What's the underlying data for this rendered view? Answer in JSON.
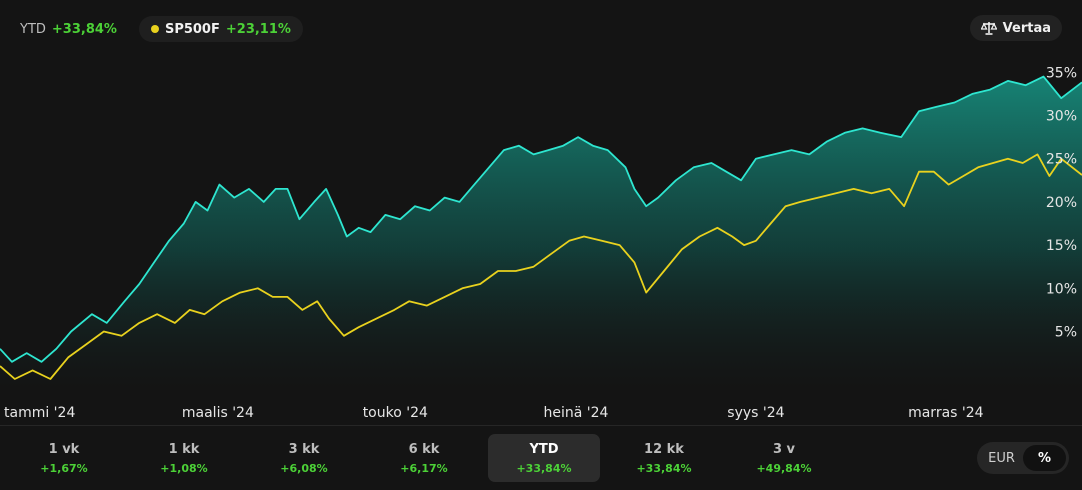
{
  "legend": {
    "primary": {
      "label": "YTD",
      "value": "+33,84%"
    },
    "benchmark": {
      "label": "SP500F",
      "value": "+23,11%",
      "color": "#e9d21e"
    }
  },
  "compare_button": {
    "label": "Vertaa",
    "icon": "scale-icon"
  },
  "periods": [
    {
      "label": "1 vk",
      "change": "+1,67%"
    },
    {
      "label": "1 kk",
      "change": "+1,08%"
    },
    {
      "label": "3 kk",
      "change": "+6,08%"
    },
    {
      "label": "6 kk",
      "change": "+6,17%"
    },
    {
      "label": "YTD",
      "change": "+33,84%",
      "active": true
    },
    {
      "label": "12 kk",
      "change": "+33,84%"
    },
    {
      "label": "3 v",
      "change": "+49,84%"
    }
  ],
  "toggle": {
    "options": [
      "EUR",
      "%"
    ],
    "active": "%"
  },
  "colors": {
    "portfolio": "#2ee6d0",
    "benchmark": "#e9d21e",
    "positive": "#4cd137",
    "background": "#141414"
  },
  "chart_data": {
    "type": "area",
    "title": "",
    "xlabel": "",
    "ylabel": "",
    "ylim": [
      -2,
      37
    ],
    "yticks": [
      5,
      10,
      15,
      20,
      25,
      30,
      35
    ],
    "ytick_labels": [
      "5%",
      "10%",
      "15%",
      "20%",
      "25%",
      "30%",
      "35%"
    ],
    "y_axis_position": "right",
    "grid": false,
    "xlim": [
      "2024-01-01",
      "2024-12-31"
    ],
    "xtick_dates": [
      "2024-01-01",
      "2024-03-01",
      "2024-05-01",
      "2024-07-01",
      "2024-09-01",
      "2024-11-01"
    ],
    "xtick_labels": [
      "tammi '24",
      "maalis '24",
      "touko '24",
      "heinä '24",
      "syys '24",
      "marras '24"
    ],
    "series": [
      {
        "name": "YTD",
        "color": "#2ee6d0",
        "fill": true,
        "points": [
          [
            "2024-01-01",
            3
          ],
          [
            "2024-01-05",
            1.5
          ],
          [
            "2024-01-10",
            2.5
          ],
          [
            "2024-01-15",
            1.5
          ],
          [
            "2024-01-20",
            3
          ],
          [
            "2024-01-25",
            5
          ],
          [
            "2024-02-01",
            7
          ],
          [
            "2024-02-06",
            6
          ],
          [
            "2024-02-12",
            8.5
          ],
          [
            "2024-02-17",
            10.5
          ],
          [
            "2024-02-22",
            13
          ],
          [
            "2024-02-27",
            15.5
          ],
          [
            "2024-03-03",
            17.5
          ],
          [
            "2024-03-07",
            20
          ],
          [
            "2024-03-11",
            19
          ],
          [
            "2024-03-15",
            22
          ],
          [
            "2024-03-20",
            20.5
          ],
          [
            "2024-03-25",
            21.5
          ],
          [
            "2024-03-30",
            20
          ],
          [
            "2024-04-03",
            21.5
          ],
          [
            "2024-04-07",
            21.5
          ],
          [
            "2024-04-11",
            18
          ],
          [
            "2024-04-16",
            20
          ],
          [
            "2024-04-20",
            21.5
          ],
          [
            "2024-04-24",
            18.5
          ],
          [
            "2024-04-27",
            16
          ],
          [
            "2024-05-01",
            17
          ],
          [
            "2024-05-05",
            16.5
          ],
          [
            "2024-05-10",
            18.5
          ],
          [
            "2024-05-15",
            18
          ],
          [
            "2024-05-20",
            19.5
          ],
          [
            "2024-05-25",
            19
          ],
          [
            "2024-05-30",
            20.5
          ],
          [
            "2024-06-04",
            20
          ],
          [
            "2024-06-09",
            22
          ],
          [
            "2024-06-14",
            24
          ],
          [
            "2024-06-19",
            26
          ],
          [
            "2024-06-24",
            26.5
          ],
          [
            "2024-06-29",
            25.5
          ],
          [
            "2024-07-04",
            26
          ],
          [
            "2024-07-09",
            26.5
          ],
          [
            "2024-07-14",
            27.5
          ],
          [
            "2024-07-19",
            26.5
          ],
          [
            "2024-07-24",
            26
          ],
          [
            "2024-07-30",
            24
          ],
          [
            "2024-08-02",
            21.5
          ],
          [
            "2024-08-06",
            19.5
          ],
          [
            "2024-08-10",
            20.5
          ],
          [
            "2024-08-16",
            22.5
          ],
          [
            "2024-08-22",
            24
          ],
          [
            "2024-08-28",
            24.5
          ],
          [
            "2024-09-02",
            23.5
          ],
          [
            "2024-09-07",
            22.5
          ],
          [
            "2024-09-12",
            25
          ],
          [
            "2024-09-18",
            25.5
          ],
          [
            "2024-09-24",
            26
          ],
          [
            "2024-09-30",
            25.5
          ],
          [
            "2024-10-06",
            27
          ],
          [
            "2024-10-12",
            28
          ],
          [
            "2024-10-18",
            28.5
          ],
          [
            "2024-10-24",
            28
          ],
          [
            "2024-10-31",
            27.5
          ],
          [
            "2024-11-06",
            30.5
          ],
          [
            "2024-11-12",
            31
          ],
          [
            "2024-11-18",
            31.5
          ],
          [
            "2024-11-24",
            32.5
          ],
          [
            "2024-11-30",
            33
          ],
          [
            "2024-12-06",
            34
          ],
          [
            "2024-12-12",
            33.5
          ],
          [
            "2024-12-18",
            34.5
          ],
          [
            "2024-12-24",
            32
          ],
          [
            "2024-12-31",
            33.84
          ]
        ]
      },
      {
        "name": "SP500F",
        "color": "#e9d21e",
        "fill": false,
        "points": [
          [
            "2024-01-01",
            1
          ],
          [
            "2024-01-06",
            -0.5
          ],
          [
            "2024-01-12",
            0.5
          ],
          [
            "2024-01-18",
            -0.5
          ],
          [
            "2024-01-24",
            2
          ],
          [
            "2024-01-30",
            3.5
          ],
          [
            "2024-02-05",
            5
          ],
          [
            "2024-02-11",
            4.5
          ],
          [
            "2024-02-17",
            6
          ],
          [
            "2024-02-23",
            7
          ],
          [
            "2024-02-29",
            6
          ],
          [
            "2024-03-05",
            7.5
          ],
          [
            "2024-03-10",
            7
          ],
          [
            "2024-03-16",
            8.5
          ],
          [
            "2024-03-22",
            9.5
          ],
          [
            "2024-03-28",
            10
          ],
          [
            "2024-04-02",
            9
          ],
          [
            "2024-04-07",
            9
          ],
          [
            "2024-04-12",
            7.5
          ],
          [
            "2024-04-17",
            8.5
          ],
          [
            "2024-04-21",
            6.5
          ],
          [
            "2024-04-26",
            4.5
          ],
          [
            "2024-05-01",
            5.5
          ],
          [
            "2024-05-07",
            6.5
          ],
          [
            "2024-05-13",
            7.5
          ],
          [
            "2024-05-18",
            8.5
          ],
          [
            "2024-05-24",
            8
          ],
          [
            "2024-05-30",
            9
          ],
          [
            "2024-06-05",
            10
          ],
          [
            "2024-06-11",
            10.5
          ],
          [
            "2024-06-17",
            12
          ],
          [
            "2024-06-23",
            12
          ],
          [
            "2024-06-29",
            12.5
          ],
          [
            "2024-07-05",
            14
          ],
          [
            "2024-07-11",
            15.5
          ],
          [
            "2024-07-16",
            16
          ],
          [
            "2024-07-22",
            15.5
          ],
          [
            "2024-07-28",
            15
          ],
          [
            "2024-08-02",
            13
          ],
          [
            "2024-08-06",
            9.5
          ],
          [
            "2024-08-12",
            12
          ],
          [
            "2024-08-18",
            14.5
          ],
          [
            "2024-08-24",
            16
          ],
          [
            "2024-08-30",
            17
          ],
          [
            "2024-09-04",
            16
          ],
          [
            "2024-09-08",
            15
          ],
          [
            "2024-09-12",
            15.5
          ],
          [
            "2024-09-17",
            17.5
          ],
          [
            "2024-09-22",
            19.5
          ],
          [
            "2024-09-27",
            20
          ],
          [
            "2024-10-03",
            20.5
          ],
          [
            "2024-10-09",
            21
          ],
          [
            "2024-10-15",
            21.5
          ],
          [
            "2024-10-21",
            21
          ],
          [
            "2024-10-27",
            21.5
          ],
          [
            "2024-11-01",
            19.5
          ],
          [
            "2024-11-06",
            23.5
          ],
          [
            "2024-11-11",
            23.5
          ],
          [
            "2024-11-16",
            22
          ],
          [
            "2024-11-21",
            23
          ],
          [
            "2024-11-26",
            24
          ],
          [
            "2024-12-01",
            24.5
          ],
          [
            "2024-12-06",
            25
          ],
          [
            "2024-12-11",
            24.5
          ],
          [
            "2024-12-16",
            25.5
          ],
          [
            "2024-12-20",
            23
          ],
          [
            "2024-12-24",
            25
          ],
          [
            "2024-12-31",
            23.11
          ]
        ]
      }
    ]
  }
}
